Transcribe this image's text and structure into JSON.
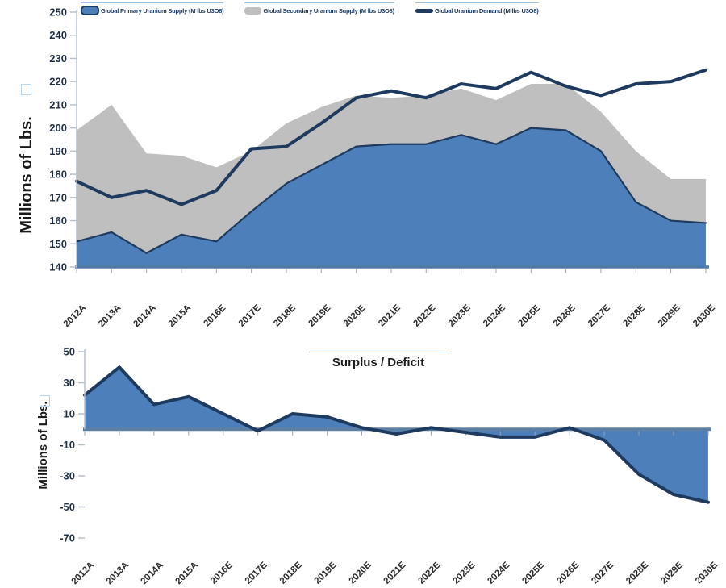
{
  "chart_data": [
    {
      "id": "supply-demand",
      "type": "area",
      "ylabel": "Millions of Lbs.",
      "ylim": [
        140,
        250
      ],
      "yticks": [
        250,
        240,
        230,
        220,
        210,
        200,
        190,
        180,
        170,
        160,
        150,
        140
      ],
      "baseline": 140,
      "grid": false,
      "legend_position": "top",
      "categories": [
        "2012A",
        "2013A",
        "2014A",
        "2015A",
        "2016E",
        "2017E",
        "2018E",
        "2019E",
        "2020E",
        "2021E",
        "2022E",
        "2023E",
        "2024E",
        "2025E",
        "2026E",
        "2027E",
        "2028E",
        "2029E",
        "2030E"
      ],
      "series": [
        {
          "name": "Global Primary Uranium Supply (M lbs U3O8)",
          "type": "area",
          "stacked": false,
          "fill": "#4d80ba",
          "edge": "#1e3a5f",
          "values": [
            151,
            155,
            146,
            154,
            151,
            164,
            176,
            184,
            192,
            193,
            193,
            197,
            193,
            200,
            199,
            190,
            168,
            160,
            159
          ]
        },
        {
          "name": "Global Secondary Uranium Supply (M lbs U3O8)",
          "type": "area",
          "stacked": true,
          "fill": "#bfbfbf",
          "edge": null,
          "values": [
            48,
            55,
            43,
            34,
            32,
            26,
            26,
            25,
            22,
            20,
            21,
            20,
            19,
            19,
            20,
            17,
            22,
            18,
            19
          ]
        },
        {
          "name": "Global Uranium Demand (M lbs U3O8)",
          "type": "line",
          "color": "#1e3a5f",
          "values": [
            177,
            170,
            173,
            167,
            173,
            191,
            192,
            202,
            213,
            216,
            213,
            219,
            217,
            224,
            218,
            214,
            219,
            220,
            225
          ]
        }
      ],
      "axis_color": "#4f7aa7"
    },
    {
      "id": "surplus-deficit",
      "type": "area",
      "title": "Surplus / Deficit",
      "ylabel": "Millions of Lbs.",
      "ylim": [
        -70,
        50
      ],
      "yticks": [
        50,
        30,
        10,
        -10,
        -30,
        -50,
        -70
      ],
      "baseline": 0,
      "grid": false,
      "categories": [
        "2012A",
        "2013A",
        "2014A",
        "2015A",
        "2016E",
        "2017E",
        "2018E",
        "2019E",
        "2020E",
        "2021E",
        "2022E",
        "2023E",
        "2024E",
        "2025E",
        "2026E",
        "2027E",
        "2028E",
        "2029E",
        "2030E"
      ],
      "series": [
        {
          "name": "Surplus / Deficit",
          "type": "area",
          "stacked": false,
          "fill": "#4d80ba",
          "edge": "#1e3a5f",
          "values": [
            22,
            40,
            16,
            21,
            10,
            -1,
            10,
            8,
            1,
            -3,
            1,
            -2,
            -5,
            -5,
            1,
            -7,
            -29,
            -42,
            -47
          ]
        }
      ],
      "axis_color": "#5d7fa4"
    }
  ]
}
